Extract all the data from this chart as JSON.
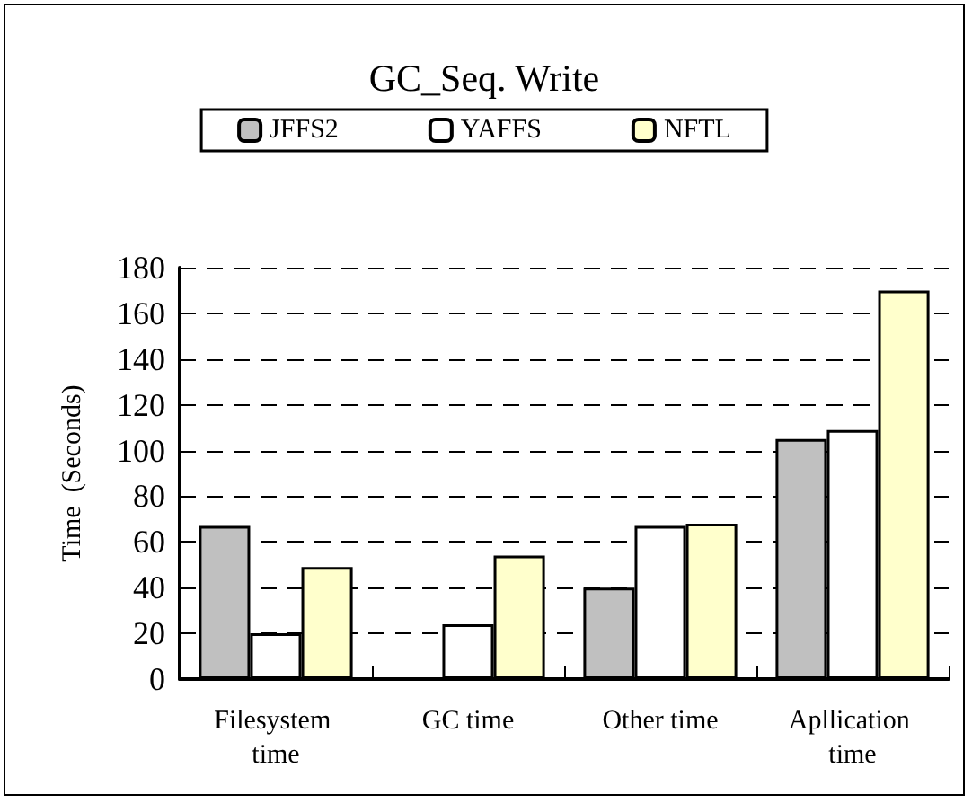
{
  "chart_data": {
    "type": "bar",
    "title": "GC_Seq. Write",
    "ylabel": "Time  (Seconds)",
    "categories": [
      "Filesystem time",
      "GC time",
      "Other time",
      "Apllication time"
    ],
    "series": [
      {
        "name": "JFFS2",
        "color": "#c0c0c0",
        "values": [
          67,
          0,
          40,
          105
        ]
      },
      {
        "name": "YAFFS",
        "color": "#ffffff",
        "values": [
          20,
          24,
          67,
          109
        ]
      },
      {
        "name": "NFTL",
        "color": "#ffffcc",
        "values": [
          49,
          54,
          68,
          170
        ]
      }
    ],
    "ylim": [
      0,
      180
    ],
    "yticks": [
      0,
      20,
      40,
      60,
      80,
      100,
      120,
      140,
      160,
      180
    ],
    "grid": "y",
    "legend": "top"
  }
}
